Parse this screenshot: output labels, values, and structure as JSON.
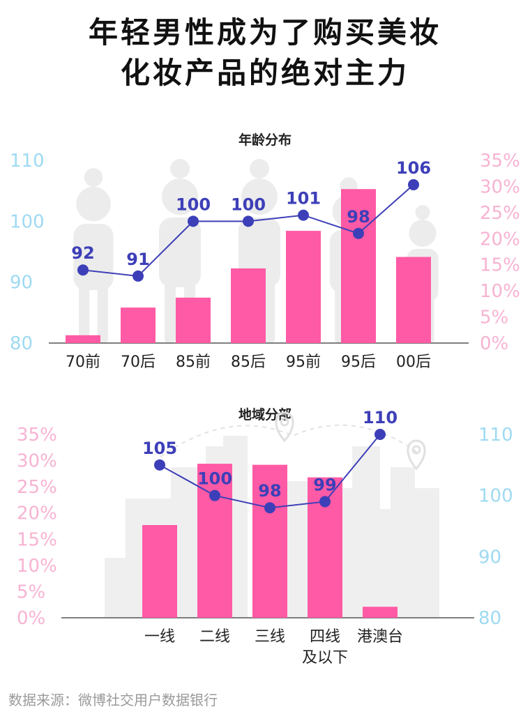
{
  "headline": {
    "line1": "年轻男性成为了购买美妆",
    "line2": "化妆产品的绝对主力"
  },
  "colors": {
    "bar": "#ff5aa5",
    "line": "#3d3fb8",
    "left_tick": "#9edaf2",
    "right_tick": "#f7b3d2",
    "axis": "#555555",
    "label": "#3d3fb8"
  },
  "icons": [
    "person-silhouette-icon",
    "city-skyline-icon",
    "location-pin-icon"
  ],
  "chart_data": [
    {
      "type": "bar",
      "title": "年龄分布",
      "categories": [
        "70前",
        "70后",
        "85前",
        "85后",
        "95前",
        "95后",
        "00后"
      ],
      "series": [
        {
          "axis": "right",
          "values": [
            1.5,
            6.8,
            8.7,
            14.3,
            21.5,
            29.5,
            16.5
          ]
        },
        {
          "axis": "left",
          "type": "line",
          "values": [
            92,
            91,
            100,
            100,
            101,
            98,
            106
          ]
        }
      ],
      "left_axis": {
        "ticks": [
          "110",
          "100",
          "90",
          "80"
        ],
        "ylim": [
          80,
          110
        ]
      },
      "right_axis": {
        "ticks": [
          "35%",
          "30%",
          "25%",
          "20%",
          "15%",
          "10%",
          "5%",
          "0%"
        ],
        "ylim": [
          0,
          35
        ]
      },
      "value_labels": [
        "92",
        "91",
        "100",
        "100",
        "101",
        "98",
        "106"
      ]
    },
    {
      "type": "bar",
      "title": "地域分部",
      "categories": [
        "一线",
        "二线",
        "三线",
        "四线\n及以下",
        "港澳台"
      ],
      "category_lines": [
        [
          "一线"
        ],
        [
          "二线"
        ],
        [
          "三线"
        ],
        [
          "四线",
          "及以下"
        ],
        [
          "港澳台"
        ]
      ],
      "series": [
        {
          "axis": "left",
          "values": [
            17.7,
            29.4,
            29.2,
            26.8,
            2.1
          ]
        },
        {
          "axis": "right",
          "type": "line",
          "values": [
            105,
            100,
            98,
            99,
            110
          ]
        }
      ],
      "left_axis": {
        "ticks": [
          "35%",
          "30%",
          "25%",
          "20%",
          "15%",
          "10%",
          "5%",
          "0%"
        ],
        "ylim": [
          0,
          35
        ]
      },
      "right_axis": {
        "ticks": [
          "110",
          "100",
          "90",
          "80"
        ],
        "ylim": [
          80,
          110
        ]
      },
      "value_labels": [
        "105",
        "100",
        "98",
        "99",
        "110"
      ]
    }
  ],
  "footer": {
    "source": "数据来源：微博社交用户数据银行"
  }
}
